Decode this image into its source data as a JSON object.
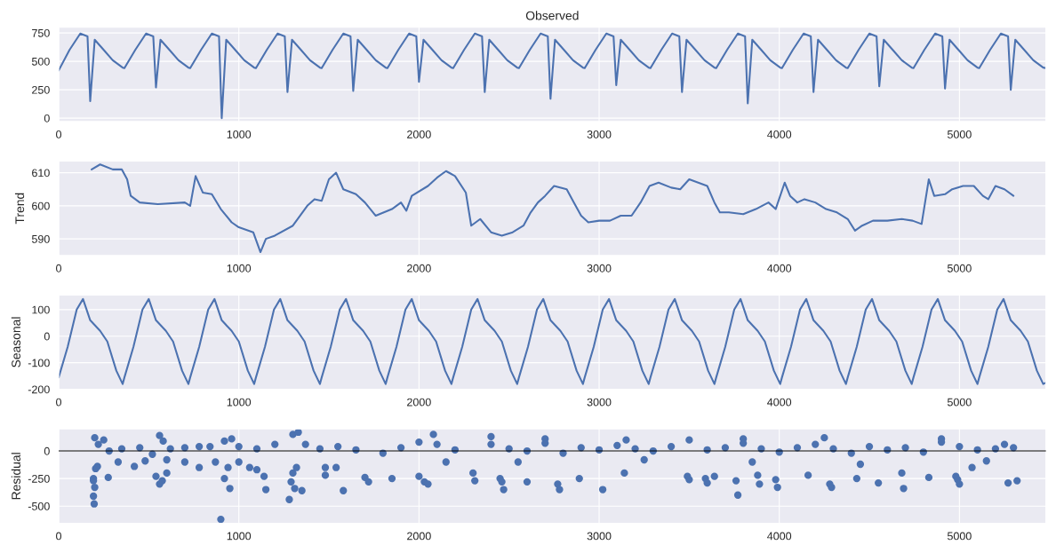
{
  "chart_data": [
    {
      "type": "line",
      "title": "Observed",
      "xlim": [
        0,
        5480
      ],
      "xticks": [
        0,
        1000,
        2000,
        3000,
        4000,
        5000
      ],
      "ylim": [
        -30,
        800
      ],
      "yticks": [
        0,
        250,
        500,
        750
      ],
      "grid": true,
      "series": [
        {
          "color": "#4c72b0",
          "x": [
            0,
            60,
            120,
            160,
            175,
            200,
            250,
            300,
            355,
            365,
            425,
            485,
            525,
            540,
            565,
            615,
            665,
            720,
            730,
            790,
            850,
            890,
            905,
            930,
            980,
            1030,
            1085,
            1095,
            1155,
            1215,
            1255,
            1270,
            1295,
            1345,
            1395,
            1450,
            1460,
            1520,
            1580,
            1620,
            1635,
            1660,
            1710,
            1760,
            1815,
            1825,
            1885,
            1945,
            1985,
            2000,
            2025,
            2075,
            2125,
            2180,
            2190,
            2250,
            2310,
            2350,
            2365,
            2390,
            2440,
            2490,
            2545,
            2555,
            2615,
            2675,
            2715,
            2730,
            2755,
            2805,
            2855,
            2910,
            2920,
            2980,
            3040,
            3080,
            3095,
            3120,
            3170,
            3220,
            3275,
            3285,
            3345,
            3405,
            3445,
            3460,
            3485,
            3535,
            3585,
            3640,
            3650,
            3710,
            3770,
            3810,
            3825,
            3850,
            3900,
            3950,
            4005,
            4015,
            4075,
            4135,
            4175,
            4190,
            4215,
            4265,
            4315,
            4370,
            4380,
            4440,
            4500,
            4540,
            4555,
            4580,
            4630,
            4680,
            4735,
            4745,
            4805,
            4865,
            4905,
            4920,
            4945,
            4995,
            5045,
            5100,
            5110,
            5170,
            5230,
            5270,
            5285,
            5310,
            5360,
            5410,
            5465,
            5480
          ],
          "values": [
            420,
            600,
            745,
            720,
            150,
            690,
            600,
            510,
            445,
            440,
            600,
            745,
            720,
            270,
            690,
            600,
            510,
            445,
            440,
            600,
            745,
            720,
            0,
            690,
            600,
            510,
            445,
            440,
            600,
            745,
            720,
            230,
            690,
            600,
            510,
            445,
            440,
            600,
            745,
            720,
            240,
            690,
            600,
            510,
            445,
            440,
            600,
            745,
            720,
            320,
            690,
            600,
            510,
            445,
            440,
            600,
            745,
            720,
            230,
            690,
            600,
            510,
            445,
            440,
            600,
            745,
            720,
            170,
            690,
            600,
            510,
            445,
            440,
            600,
            745,
            720,
            290,
            690,
            600,
            510,
            445,
            440,
            600,
            745,
            720,
            230,
            690,
            600,
            510,
            445,
            440,
            600,
            745,
            720,
            130,
            690,
            600,
            510,
            445,
            440,
            600,
            745,
            720,
            230,
            690,
            600,
            510,
            445,
            440,
            600,
            745,
            720,
            280,
            690,
            600,
            510,
            445,
            440,
            600,
            745,
            720,
            260,
            690,
            600,
            510,
            445,
            440,
            600,
            745,
            720,
            250,
            690,
            600,
            510,
            445,
            440
          ]
        }
      ]
    },
    {
      "type": "line",
      "ylabel": "Trend",
      "xlim": [
        0,
        5480
      ],
      "xticks": [
        0,
        1000,
        2000,
        3000,
        4000,
        5000
      ],
      "ylim": [
        585,
        613.5
      ],
      "yticks": [
        590,
        600,
        610
      ],
      "grid": true,
      "series": [
        {
          "color": "#4c72b0",
          "x": [
            183,
            230,
            300,
            350,
            380,
            400,
            450,
            550,
            700,
            730,
            760,
            800,
            850,
            900,
            960,
            1000,
            1080,
            1120,
            1150,
            1200,
            1300,
            1380,
            1420,
            1460,
            1500,
            1540,
            1580,
            1650,
            1700,
            1760,
            1850,
            1900,
            1930,
            1960,
            2050,
            2100,
            2150,
            2200,
            2260,
            2290,
            2340,
            2400,
            2460,
            2520,
            2580,
            2620,
            2660,
            2700,
            2750,
            2820,
            2860,
            2900,
            2940,
            3000,
            3060,
            3120,
            3180,
            3230,
            3280,
            3330,
            3400,
            3450,
            3500,
            3550,
            3600,
            3640,
            3670,
            3720,
            3800,
            3870,
            3940,
            3980,
            4030,
            4060,
            4100,
            4140,
            4200,
            4260,
            4320,
            4380,
            4420,
            4460,
            4520,
            4600,
            4680,
            4740,
            4790,
            4830,
            4860,
            4920,
            4960,
            5020,
            5080,
            5130,
            5160,
            5200,
            5250,
            5300
          ],
          "values": [
            611,
            612.5,
            611,
            611,
            608,
            603,
            601,
            600.5,
            601,
            600,
            609,
            604,
            603.5,
            599,
            595,
            593.5,
            592,
            586,
            590,
            591,
            594,
            600,
            602,
            601.5,
            608,
            610,
            605,
            603.5,
            601,
            597,
            599,
            601,
            598.5,
            603,
            606,
            608.5,
            610.5,
            609,
            604,
            594,
            596,
            592,
            591,
            592,
            594,
            598,
            601,
            603,
            606,
            605,
            601,
            597,
            595,
            595.5,
            595.5,
            597,
            597,
            601,
            606,
            607,
            605.5,
            605,
            608,
            607,
            606,
            601,
            598,
            598,
            597.5,
            599,
            601,
            599,
            607,
            603,
            601,
            602,
            601,
            599,
            598,
            596,
            592.5,
            594,
            595.5,
            595.5,
            596,
            595.5,
            594.5,
            608,
            603,
            603.5,
            605,
            606,
            606,
            603,
            602,
            606,
            605,
            603
          ]
        }
      ]
    },
    {
      "type": "line",
      "ylabel": "Seasonal",
      "xlim": [
        0,
        5480
      ],
      "xticks": [
        0,
        1000,
        2000,
        3000,
        4000,
        5000
      ],
      "ylim": [
        -200,
        155
      ],
      "yticks": [
        -200,
        -100,
        0,
        100
      ],
      "grid": true,
      "series": [
        {
          "color": "#4c72b0",
          "x": [
            0,
            50,
            100,
            135,
            175,
            230,
            270,
            320,
            355,
            365,
            415,
            465,
            500,
            540,
            595,
            635,
            685,
            720,
            730,
            780,
            830,
            865,
            905,
            960,
            1000,
            1050,
            1085,
            1095,
            1145,
            1195,
            1230,
            1270,
            1325,
            1365,
            1415,
            1450,
            1460,
            1510,
            1560,
            1595,
            1635,
            1690,
            1730,
            1780,
            1815,
            1825,
            1875,
            1925,
            1960,
            2000,
            2055,
            2095,
            2145,
            2180,
            2190,
            2240,
            2290,
            2325,
            2365,
            2420,
            2460,
            2510,
            2545,
            2555,
            2605,
            2655,
            2690,
            2730,
            2785,
            2825,
            2875,
            2910,
            2920,
            2970,
            3020,
            3055,
            3095,
            3150,
            3190,
            3240,
            3275,
            3285,
            3335,
            3385,
            3420,
            3460,
            3515,
            3555,
            3605,
            3640,
            3650,
            3700,
            3750,
            3785,
            3825,
            3880,
            3920,
            3970,
            4005,
            4015,
            4065,
            4115,
            4150,
            4190,
            4245,
            4285,
            4335,
            4370,
            4380,
            4430,
            4480,
            4515,
            4555,
            4610,
            4650,
            4700,
            4735,
            4745,
            4795,
            4845,
            4880,
            4920,
            4975,
            5015,
            5065,
            5100,
            5110,
            5160,
            5210,
            5245,
            5285,
            5340,
            5380,
            5430,
            5465,
            5480
          ],
          "values": [
            -155,
            -40,
            100,
            140,
            60,
            20,
            -20,
            -130,
            -180,
            -155,
            -40,
            100,
            140,
            60,
            20,
            -20,
            -130,
            -180,
            -155,
            -40,
            100,
            140,
            60,
            20,
            -20,
            -130,
            -180,
            -155,
            -40,
            100,
            140,
            60,
            20,
            -20,
            -130,
            -180,
            -155,
            -40,
            100,
            140,
            60,
            20,
            -20,
            -130,
            -180,
            -155,
            -40,
            100,
            140,
            60,
            20,
            -20,
            -130,
            -180,
            -155,
            -40,
            100,
            140,
            60,
            20,
            -20,
            -130,
            -180,
            -155,
            -40,
            100,
            140,
            60,
            20,
            -20,
            -130,
            -180,
            -155,
            -40,
            100,
            140,
            60,
            20,
            -20,
            -130,
            -180,
            -155,
            -40,
            100,
            140,
            60,
            20,
            -20,
            -130,
            -180,
            -155,
            -40,
            100,
            140,
            60,
            20,
            -20,
            -130,
            -180,
            -155,
            -40,
            100,
            140,
            60,
            20,
            -20,
            -130,
            -180,
            -155,
            -40,
            100,
            140,
            60,
            20,
            -20,
            -130,
            -180,
            -155,
            -40,
            100,
            140,
            60,
            20,
            -20,
            -130,
            -180,
            -155,
            -40,
            100,
            140,
            60,
            20,
            -20,
            -130,
            -180,
            -175
          ]
        }
      ]
    },
    {
      "type": "scatter",
      "ylabel": "Residual",
      "xlim": [
        0,
        5480
      ],
      "xticks": [
        0,
        1000,
        2000,
        3000,
        4000,
        5000
      ],
      "ylim": [
        -655,
        200
      ],
      "yticks": [
        -500,
        -250,
        0
      ],
      "grid": true,
      "marker": "circle",
      "ref_lines": [
        {
          "axis": "y",
          "value": 0,
          "color": "#000000"
        }
      ],
      "series": [
        {
          "color": "#4c72b0",
          "x": [
            193,
            193,
            200,
            193,
            197,
            205,
            215,
            275,
            330,
            420,
            480,
            540,
            560,
            575,
            600,
            600,
            700,
            780,
            870,
            920,
            940,
            950,
            900,
            1000,
            1060,
            1100,
            1140,
            1150,
            1280,
            1290,
            1310,
            1300,
            1320,
            1350,
            1480,
            1480,
            1540,
            1580,
            200,
            220,
            250,
            280,
            350,
            450,
            520,
            560,
            580,
            620,
            700,
            780,
            840,
            920,
            960,
            1000,
            1100,
            1200,
            1300,
            1330,
            1370,
            1450,
            1550,
            1650,
            1700,
            1720,
            1850,
            2000,
            2030,
            2050,
            2300,
            2310,
            2450,
            2460,
            2470,
            2600,
            2770,
            2780,
            2890,
            3020,
            3140,
            3490,
            3500,
            3590,
            3600,
            3640,
            3760,
            3770,
            3880,
            3890,
            3980,
            3990,
            4160,
            4280,
            4290,
            4430,
            4550,
            4680,
            4690,
            4830,
            4980,
            4990,
            5000,
            5070,
            5270,
            5320,
            2080,
            2400,
            2700,
            3150,
            3500,
            3800,
            4250,
            4900,
            5250,
            1800,
            1900,
            2000,
            2100,
            2200,
            2400,
            2500,
            2600,
            2700,
            2800,
            2900,
            3000,
            3100,
            3200,
            3300,
            3400,
            3600,
            3700,
            3800,
            3900,
            4000,
            4100,
            4200,
            4300,
            4400,
            4500,
            4600,
            4700,
            4800,
            4900,
            5000,
            5100,
            5200,
            5300,
            2150,
            2550,
            3250,
            3850,
            4450,
            5150
          ],
          "values": [
            -250,
            -270,
            -330,
            -410,
            -480,
            -160,
            -140,
            -240,
            -100,
            -140,
            -90,
            -230,
            -300,
            -270,
            -200,
            -80,
            -100,
            -150,
            -100,
            -250,
            -150,
            -340,
            -620,
            -100,
            -150,
            -170,
            -230,
            -350,
            -440,
            -280,
            -340,
            -200,
            -150,
            -360,
            -150,
            -220,
            -150,
            -360,
            120,
            60,
            100,
            0,
            20,
            30,
            -30,
            140,
            90,
            20,
            30,
            40,
            40,
            90,
            110,
            40,
            20,
            60,
            150,
            170,
            60,
            20,
            40,
            10,
            -240,
            -280,
            -250,
            -230,
            -280,
            -300,
            -200,
            -270,
            -250,
            -280,
            -350,
            -280,
            -300,
            -350,
            -250,
            -350,
            -200,
            -230,
            -260,
            -250,
            -290,
            -230,
            -270,
            -400,
            -220,
            -300,
            -260,
            -330,
            -220,
            -300,
            -330,
            -250,
            -290,
            -200,
            -340,
            -240,
            -230,
            -260,
            -300,
            -150,
            -290,
            -270,
            150,
            130,
            110,
            100,
            100,
            110,
            120,
            110,
            60,
            -20,
            30,
            80,
            60,
            10,
            60,
            20,
            0,
            70,
            -20,
            30,
            10,
            50,
            20,
            0,
            40,
            10,
            30,
            70,
            20,
            -10,
            30,
            60,
            20,
            -20,
            40,
            10,
            30,
            -10,
            80,
            40,
            10,
            20,
            30,
            -100,
            -100,
            -80,
            -100,
            -120,
            -90
          ]
        }
      ]
    }
  ]
}
